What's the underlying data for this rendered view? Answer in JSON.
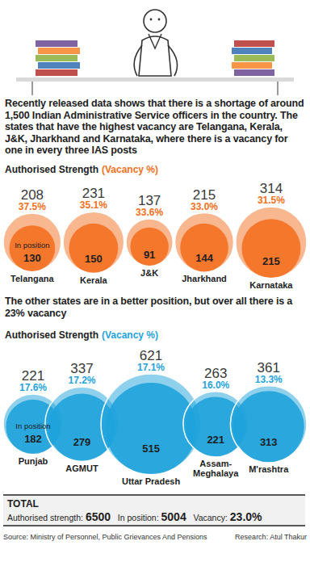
{
  "chart_data": [
    {
      "type": "bubble",
      "title": "Recently released data shows that there is a shortage of around 1,500 Indian Administrative Service officers in the country. The states that have the highest vacancy are Telangana, Kerala, J&K, Jharkhand and Karnataka, where there is a vacancy for one in every three IAS posts",
      "size_label": "Authorised Strength",
      "value_label": "(Vacancy %)",
      "in_position_label": "In position",
      "categories": [
        "Telangana",
        "Kerala",
        "J&K",
        "Jharkhand",
        "Karnataka"
      ],
      "size": [
        208,
        231,
        137,
        215,
        314
      ],
      "values": [
        37.5,
        35.1,
        33.6,
        33.0,
        31.5
      ],
      "value_labels": [
        "37.5%",
        "35.1%",
        "33.6%",
        "33.0%",
        "31.5%"
      ],
      "in_position": [
        130,
        150,
        91,
        144,
        215
      ],
      "color": "#f37021",
      "data_labels": true
    },
    {
      "type": "bubble",
      "title": "The other states are in a better position, but over all there is a 23% vacancy",
      "size_label": "Authorised Strength",
      "value_label": "(Vacancy %)",
      "in_position_label": "In position",
      "categories": [
        "Punjab",
        "AGMUT",
        "Uttar Pradesh",
        "Assam-Meghalaya",
        "M'rashtra"
      ],
      "size": [
        221,
        337,
        621,
        263,
        361
      ],
      "values": [
        17.6,
        17.2,
        17.1,
        16.0,
        13.3
      ],
      "value_labels": [
        "17.6%",
        "17.2%",
        "17.1%",
        "16.0%",
        "13.3%"
      ],
      "in_position": [
        182,
        279,
        515,
        221,
        313
      ],
      "color": "#1fa3dc",
      "data_labels": true
    }
  ],
  "total": {
    "title": "TOTAL",
    "authorised_label": "Authorised strength:",
    "authorised": 6500,
    "in_position_label": "In position:",
    "in_position": 5004,
    "vacancy_label": "Vacancy:",
    "vacancy": {
      "value": 23,
      "label": "23.0%"
    }
  },
  "footer": {
    "source": "Source: Ministry of Personnel, Public Grievances And Pensions",
    "research": "Research: Atul Thakur"
  }
}
